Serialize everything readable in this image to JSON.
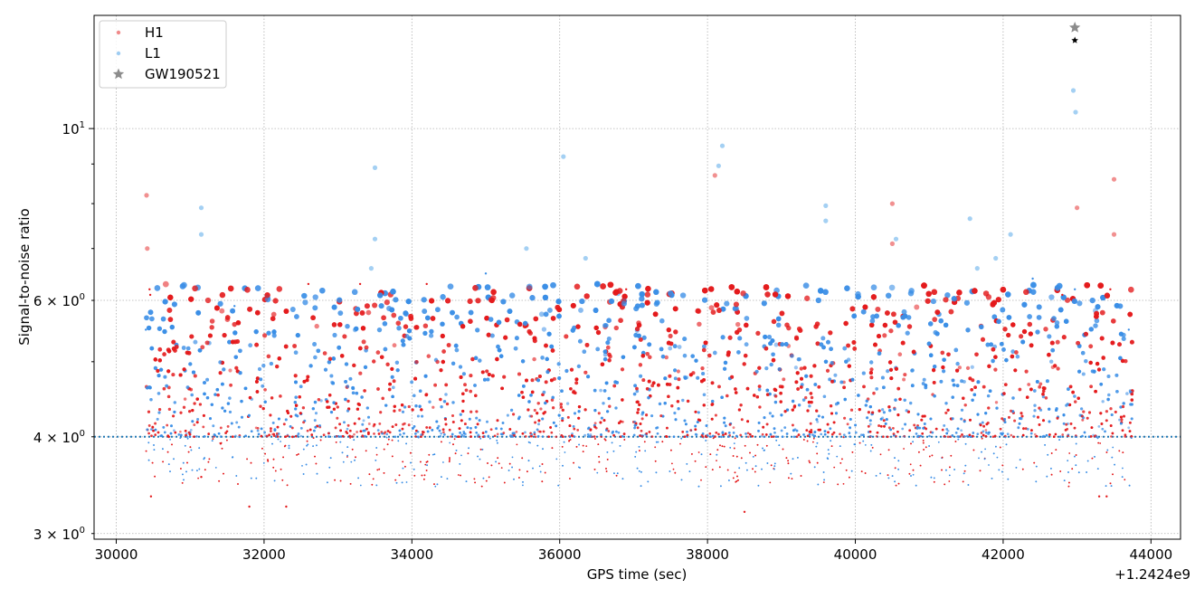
{
  "chart_data": {
    "type": "scatter",
    "title": "",
    "xlabel": "GPS time (sec)",
    "ylabel": "Signal-to-noise ratio",
    "x_offset_label": "+1.2424e9",
    "xlim": [
      29700,
      44400
    ],
    "ylim": [
      2.95,
      14.0
    ],
    "yscale": "log",
    "grid": true,
    "legend_position": "top-left",
    "x_ticks": [
      30000,
      32000,
      34000,
      36000,
      38000,
      40000,
      42000,
      44000
    ],
    "x_tick_labels": [
      "30000",
      "32000",
      "34000",
      "36000",
      "38000",
      "40000",
      "42000",
      "44000"
    ],
    "y_major_ticks": [
      10
    ],
    "y_major_tick_labels": [
      {
        "base": "10",
        "exp": "1",
        "mantissa": ""
      }
    ],
    "y_minor_ticks": [
      3,
      4,
      6
    ],
    "y_minor_tick_labels": [
      {
        "mantissa": "3",
        "base": "10",
        "exp": "0"
      },
      {
        "mantissa": "4",
        "base": "10",
        "exp": "0"
      },
      {
        "mantissa": "6",
        "base": "10",
        "exp": "0"
      }
    ],
    "threshold": 4.0,
    "threshold_color": "#1f77b4",
    "data_x_range": [
      30400,
      43750
    ],
    "series": [
      {
        "name": "H1",
        "color": "#e41a1c",
        "legend_color": "#f08a8a",
        "points": [
          [
            30410,
            8.2
          ],
          [
            30420,
            7.0
          ],
          [
            30450,
            6.2
          ],
          [
            30460,
            6.1
          ],
          [
            30470,
            3.35
          ],
          [
            31150,
            3.55
          ],
          [
            31800,
            3.25
          ],
          [
            32300,
            3.25
          ],
          [
            32600,
            6.3
          ],
          [
            33300,
            6.3
          ],
          [
            34200,
            6.3
          ],
          [
            36900,
            6.2
          ],
          [
            38100,
            8.7
          ],
          [
            38500,
            3.2
          ],
          [
            40500,
            8.0
          ],
          [
            40500,
            7.1
          ],
          [
            42800,
            6.1
          ],
          [
            43000,
            7.9
          ],
          [
            43300,
            3.35
          ],
          [
            43400,
            3.35
          ],
          [
            43500,
            8.6
          ],
          [
            43500,
            7.3
          ],
          [
            43450,
            6.2
          ]
        ]
      },
      {
        "name": "L1",
        "color": "#3a8ee6",
        "legend_color": "#9fcdf2",
        "points": [
          [
            30400,
            5.5
          ],
          [
            31150,
            7.9
          ],
          [
            31150,
            7.3
          ],
          [
            31600,
            5.9
          ],
          [
            33500,
            8.9
          ],
          [
            33500,
            7.2
          ],
          [
            33450,
            6.6
          ],
          [
            35000,
            6.5
          ],
          [
            35550,
            7.0
          ],
          [
            36050,
            9.2
          ],
          [
            36350,
            6.8
          ],
          [
            38200,
            9.5
          ],
          [
            38150,
            8.95
          ],
          [
            39600,
            7.95
          ],
          [
            39600,
            7.6
          ],
          [
            40550,
            7.2
          ],
          [
            41550,
            7.65
          ],
          [
            41650,
            6.6
          ],
          [
            41900,
            6.8
          ],
          [
            42100,
            7.3
          ],
          [
            42400,
            6.4
          ],
          [
            42950,
            11.2
          ],
          [
            42980,
            10.5
          ],
          [
            42970,
            6.2
          ],
          [
            43700,
            5.5
          ]
        ]
      }
    ],
    "event": {
      "name": "GW190521",
      "x": 42970,
      "y": 13.5,
      "y_alt": 13.0,
      "color": "#8c8c8c",
      "alt_color": "#000000"
    }
  }
}
